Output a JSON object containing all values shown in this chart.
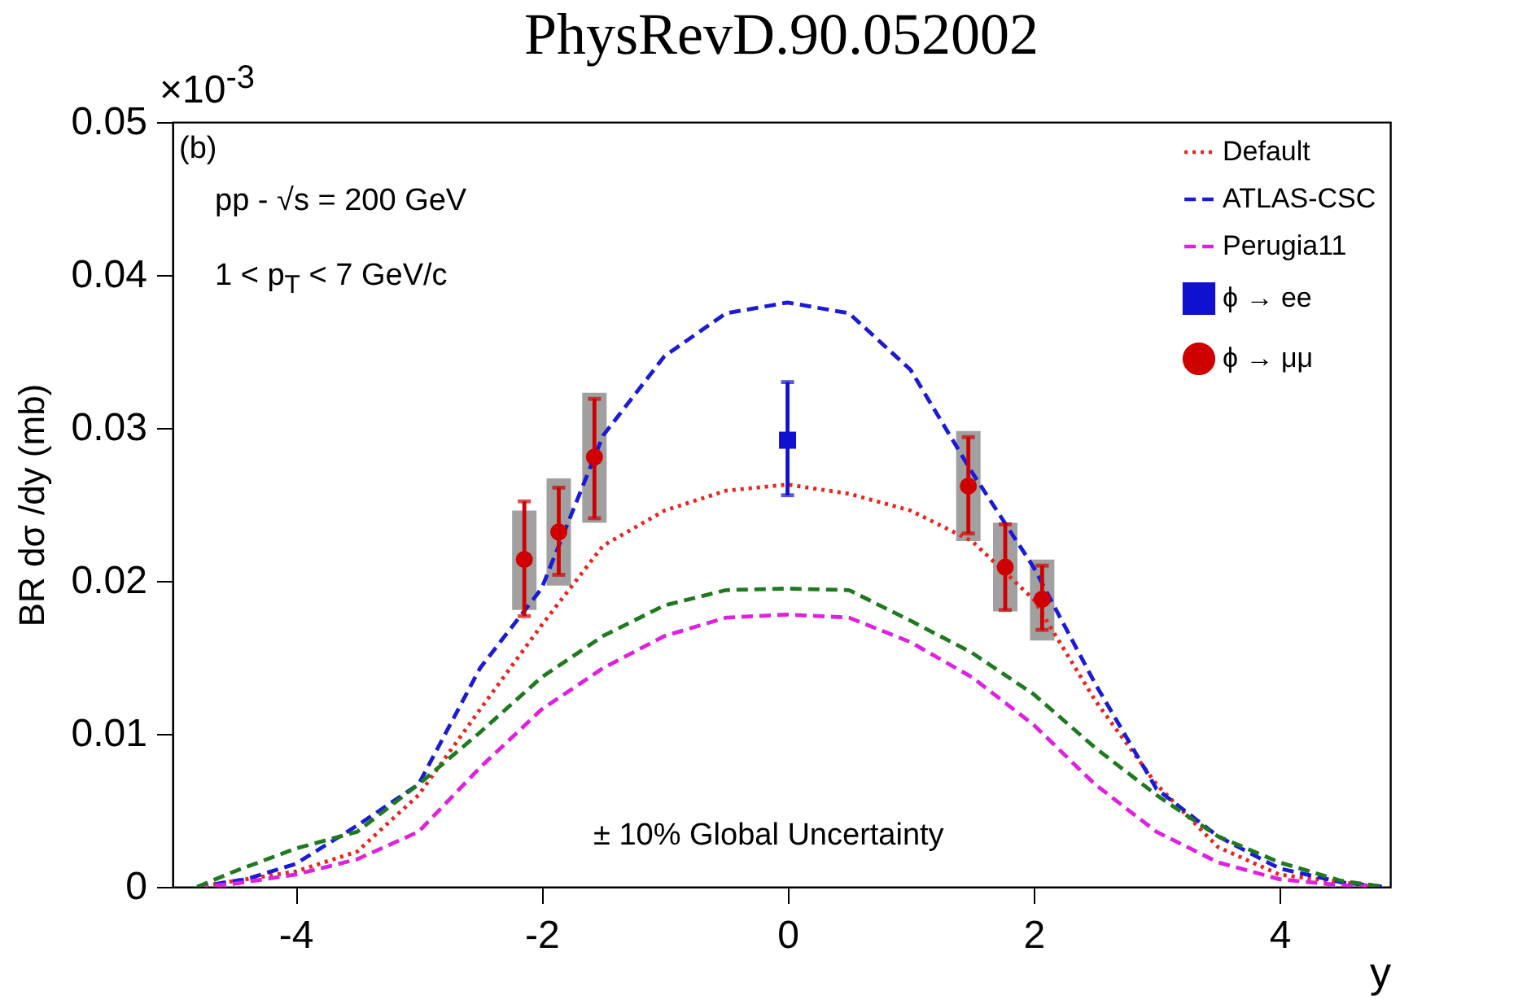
{
  "chart_data": {
    "type": "line",
    "title": "PhysRevD.90.052002",
    "xlabel": "y",
    "ylabel": "BR dσ /dy (mb)",
    "annotations": [
      "×10$^{-3}$",
      "(b)",
      "pp - √s = 200 GeV",
      "1 < p$_{T}$ < 7 GeV/c",
      "± 10% Global Uncertainty"
    ],
    "xlim": [
      -5,
      4.9
    ],
    "xticks": [
      -4,
      -2,
      0,
      2,
      4
    ],
    "ylim": [
      0,
      0.05
    ],
    "yticks": [
      0,
      0.01,
      0.02,
      0.03,
      0.04,
      0.05
    ],
    "grid": false,
    "legend": "top right",
    "series": [
      {
        "name": "Default",
        "color": "#e8241c",
        "line_style": "dotted",
        "marker": "none",
        "x": [
          -4.8,
          -4,
          -3.5,
          -3,
          -2.5,
          -2,
          -1.5,
          -1,
          -0.5,
          0,
          0.5,
          1,
          1.5,
          2,
          2.5,
          3,
          3.5,
          4,
          4.8
        ],
        "values": [
          0,
          0.001,
          0.0023,
          0.006,
          0.0116,
          0.0171,
          0.0223,
          0.0246,
          0.0259,
          0.0263,
          0.0257,
          0.0246,
          0.0226,
          0.0188,
          0.0122,
          0.0067,
          0.0026,
          0.0008,
          0
        ]
      },
      {
        "name": "ATLAS-CSC",
        "color": "#1a1ad8",
        "line_style": "dashed",
        "marker": "none",
        "x": [
          -4.8,
          -4.4,
          -4,
          -3.5,
          -3,
          -2.5,
          -2,
          -1.5,
          -1,
          -0.5,
          0,
          0.5,
          1,
          1.5,
          2,
          2.5,
          3,
          3.5,
          4,
          4.5,
          4.85
        ],
        "values": [
          0,
          0.0005,
          0.0015,
          0.004,
          0.0067,
          0.0143,
          0.0195,
          0.0295,
          0.0347,
          0.0375,
          0.0382,
          0.0375,
          0.0338,
          0.0271,
          0.0209,
          0.0133,
          0.0064,
          0.0033,
          0.0012,
          0.0003,
          0
        ]
      },
      {
        "name": "Perugia11",
        "color": "#e020e0",
        "line_style": "dashed",
        "marker": "none",
        "x": [
          -4.8,
          -4.5,
          -4,
          -3.5,
          -3,
          -2.5,
          -2,
          -1.5,
          -1,
          -0.5,
          0,
          0.5,
          1,
          1.5,
          2,
          2.5,
          3,
          3.5,
          4,
          4.5,
          4.8
        ],
        "values": [
          0,
          0.0002,
          0.0008,
          0.0018,
          0.0036,
          0.0078,
          0.0116,
          0.0143,
          0.0164,
          0.0176,
          0.0178,
          0.0176,
          0.016,
          0.0137,
          0.0106,
          0.0067,
          0.0036,
          0.0016,
          0.0005,
          0.0001,
          0
        ]
      },
      {
        "color": "#1f7a1f",
        "line_style": "dashed",
        "marker": "none",
        "x": [
          -4.8,
          -4.5,
          -4,
          -3.5,
          -3,
          -2.5,
          -2,
          -1.5,
          -1,
          -0.5,
          0,
          0.5,
          1,
          1.5,
          2,
          2.5,
          3,
          3.5,
          4,
          4.5,
          4.85
        ],
        "values": [
          0,
          0.001,
          0.0025,
          0.0036,
          0.0067,
          0.0101,
          0.0137,
          0.0164,
          0.0184,
          0.0194,
          0.0195,
          0.0194,
          0.0174,
          0.0153,
          0.0126,
          0.0091,
          0.006,
          0.0033,
          0.0016,
          0.0004,
          0
        ]
      },
      {
        "type": "bar",
        "color": "#a0a0a0",
        "x": [
          -2.14,
          -1.86,
          -1.57,
          1.47,
          1.77,
          2.07
        ],
        "base": [
          0.0181,
          0.0197,
          0.0238,
          0.0226,
          0.018,
          0.0161
        ],
        "values": [
          0.0065,
          0.007,
          0.0085,
          0.0072,
          0.0058,
          0.0053
        ]
      },
      {
        "name": "ϕ → ee",
        "type": "scatter",
        "color": "#1010d0",
        "marker": "square",
        "x": [
          0
        ],
        "values": [
          0.0292
        ],
        "errors": [
          [
            0.0256,
            0.033
          ]
        ]
      },
      {
        "name": "ϕ → μμ",
        "type": "scatter",
        "color": "#d00000",
        "marker": "circle",
        "x": [
          -2.14,
          -1.86,
          -1.57,
          1.47,
          1.77,
          2.07
        ],
        "values": [
          0.0214,
          0.0232,
          0.0281,
          0.0262,
          0.0209,
          0.0188
        ],
        "errors": [
          [
            0.0177,
            0.0252
          ],
          [
            0.0204,
            0.0261
          ],
          [
            0.0241,
            0.0319
          ],
          [
            0.0231,
            0.0294
          ],
          [
            0.0181,
            0.0237
          ],
          [
            0.0168,
            0.021
          ]
        ]
      }
    ]
  }
}
